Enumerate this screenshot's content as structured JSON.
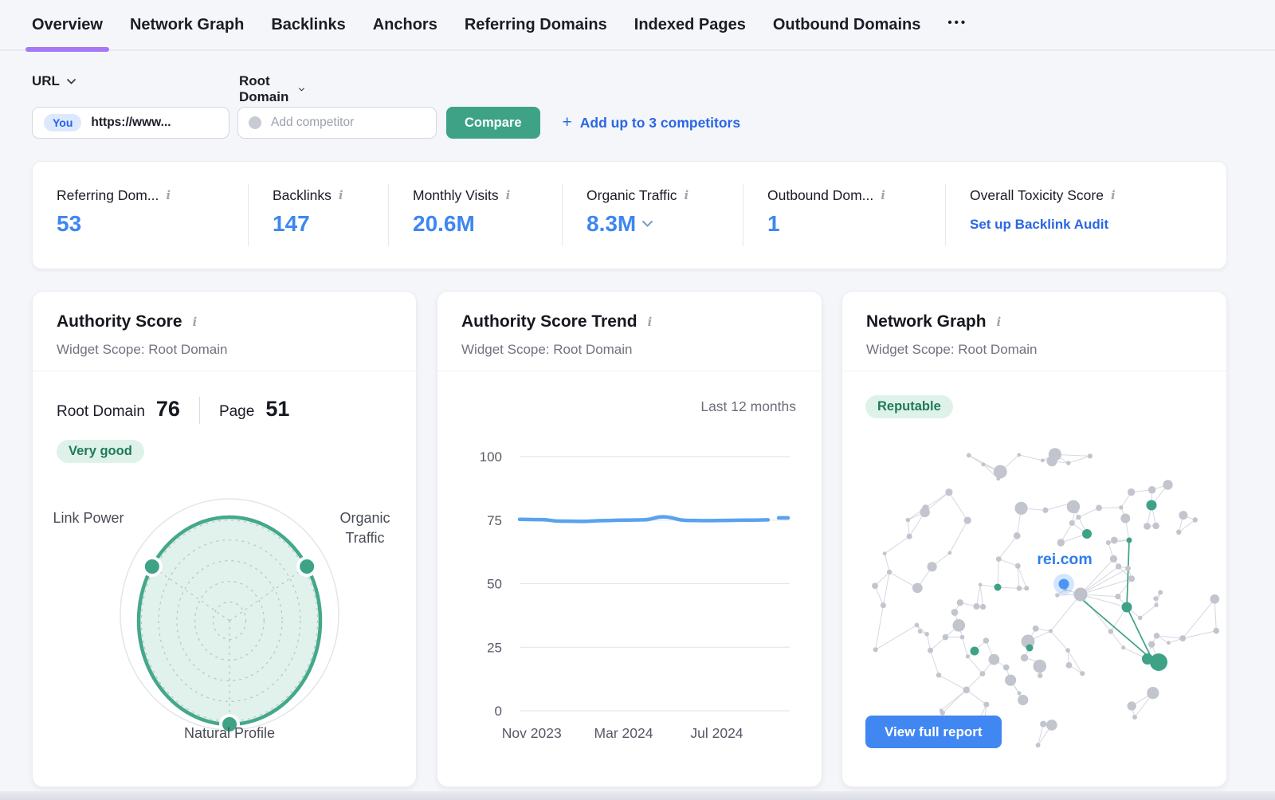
{
  "nav": {
    "tabs": [
      {
        "label": "Overview",
        "active": true
      },
      {
        "label": "Network Graph",
        "active": false
      },
      {
        "label": "Backlinks",
        "active": false
      },
      {
        "label": "Anchors",
        "active": false
      },
      {
        "label": "Referring Domains",
        "active": false
      },
      {
        "label": "Indexed Pages",
        "active": false
      },
      {
        "label": "Outbound Domains",
        "active": false
      }
    ],
    "more": "•••"
  },
  "filters": {
    "url_type_label": "URL",
    "scope_label": "Root Domain",
    "you_badge": "You",
    "you_value": "https://www...",
    "competitor_placeholder": "Add competitor",
    "compare_label": "Compare",
    "add_competitors_label": "Add up to 3 competitors"
  },
  "metrics": {
    "items": [
      {
        "label": "Referring Dom...",
        "value": "53"
      },
      {
        "label": "Backlinks",
        "value": "147"
      },
      {
        "label": "Monthly Visits",
        "value": "20.6M"
      },
      {
        "label": "Organic Traffic",
        "value": "8.3M"
      },
      {
        "label": "Outbound Dom...",
        "value": "1"
      },
      {
        "label": "Overall Toxicity Score",
        "link": "Set up Backlink Audit"
      }
    ]
  },
  "cards": {
    "authority": {
      "title": "Authority Score",
      "scope": "Widget Scope: Root Domain",
      "root_domain_label": "Root Domain",
      "root_domain_value": "76",
      "page_label": "Page",
      "page_value": "51",
      "badge": "Very good"
    },
    "trend": {
      "title": "Authority Score Trend",
      "scope": "Widget Scope: Root Domain",
      "range_label": "Last 12 months"
    },
    "network": {
      "title": "Network Graph",
      "scope": "Widget Scope: Root Domain",
      "badge": "Reputable",
      "center_label": "rei.com",
      "button": "View full report"
    }
  },
  "chart_data": [
    {
      "type": "radar",
      "title": "Authority Score",
      "axes": [
        "Link Power",
        "Organic Traffic",
        "Natural Profile"
      ],
      "axis_angles_deg": [
        145,
        35,
        270
      ],
      "values": [
        83,
        83,
        90
      ],
      "max": 100,
      "root_domain_score": 76,
      "page_score": 51,
      "rating": "Very good"
    },
    {
      "type": "line",
      "title": "Authority Score Trend",
      "range_label": "Last 12 months",
      "ylim": [
        0,
        100
      ],
      "yticks": [
        100,
        75,
        50,
        25,
        0
      ],
      "x_labels": [
        {
          "label": "Nov 2023",
          "pos": 0.045
        },
        {
          "label": "Mar 2024",
          "pos": 0.385
        },
        {
          "label": "Jul 2024",
          "pos": 0.73
        }
      ],
      "series": [
        {
          "name": "Authority Score",
          "points": [
            [
              0,
              75.3
            ],
            [
              0.08,
              75.2
            ],
            [
              0.15,
              74.6
            ],
            [
              0.23,
              74.5
            ],
            [
              0.31,
              74.8
            ],
            [
              0.38,
              75.0
            ],
            [
              0.46,
              75.1
            ],
            [
              0.53,
              76.3
            ],
            [
              0.62,
              74.9
            ],
            [
              0.69,
              74.8
            ],
            [
              0.77,
              74.9
            ],
            [
              0.85,
              75.0
            ],
            [
              0.92,
              75.1
            ]
          ]
        }
      ],
      "projection_dash": [
        [
          0.959,
          75.9
        ],
        [
          0.994,
          75.9
        ]
      ],
      "grid": true,
      "legend": false
    }
  ],
  "colors": {
    "accent_purple": "#A678F5",
    "value_blue": "#3E87F0",
    "link_blue": "#2B66E3",
    "button_green": "#3EA287",
    "pill_green_bg": "#DEF2E9",
    "pill_green_text": "#1E7A5A",
    "button_blue": "#4187F2",
    "trend_line_blue": "#5AA2F0",
    "radar_green": "#44A88A",
    "node_gray": "#C2C5CE",
    "node_green": "#3EA287",
    "node_blue": "#4D94F5"
  }
}
